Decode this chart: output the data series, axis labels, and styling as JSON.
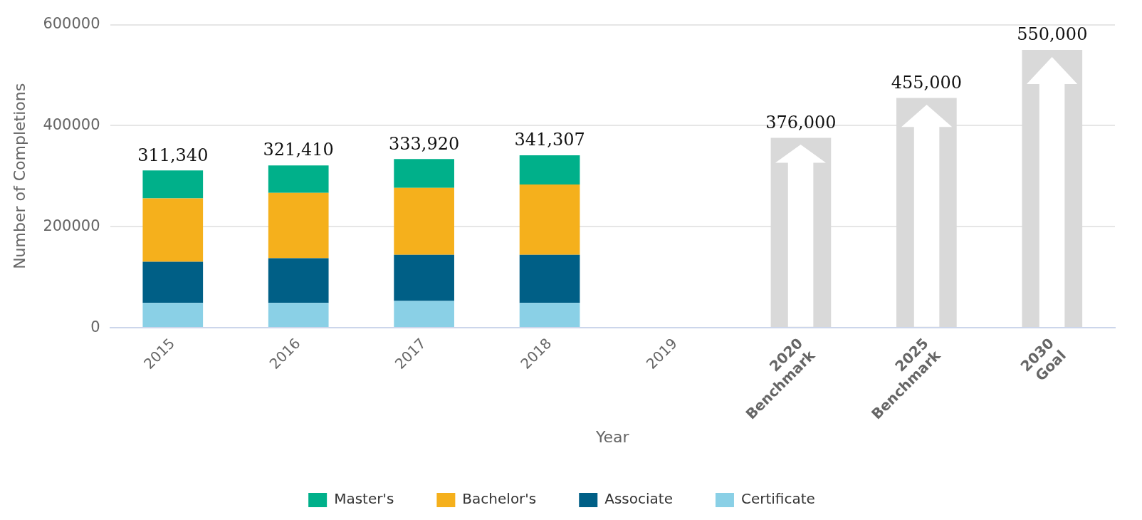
{
  "chart_data": {
    "type": "bar",
    "stacked": true,
    "xlabel": "Year",
    "ylabel": "Number of Completions",
    "categories": [
      "2015",
      "2016",
      "2017",
      "2018",
      "2019",
      "2020\nBenchmark",
      "2025\nBenchmark",
      "2030\nGoal"
    ],
    "series": [
      {
        "name": "Certificate",
        "color": "#8ad0e6",
        "values": [
          49000,
          49000,
          53000,
          49000,
          null,
          null,
          null,
          null
        ]
      },
      {
        "name": "Associate",
        "color": "#005f86",
        "values": [
          81500,
          88500,
          91500,
          95500,
          null,
          null,
          null,
          null
        ]
      },
      {
        "name": "Bachelor's",
        "color": "#f5b01c",
        "values": [
          125500,
          129500,
          132500,
          139000,
          null,
          null,
          null,
          null
        ]
      },
      {
        "name": "Master's",
        "color": "#00b08a",
        "values": [
          55340,
          54410,
          56920,
          57807,
          null,
          null,
          null,
          null
        ]
      },
      {
        "color": "#d9d9d9",
        "values": [
          null,
          null,
          null,
          null,
          null,
          376000,
          455000,
          550000
        ]
      }
    ],
    "totals": [
      "311,340",
      "321,410",
      "333,920",
      "341,307",
      null,
      "376,000",
      "455,000",
      "550,000"
    ],
    "ylim": [
      0,
      600000
    ],
    "yticks": [
      0,
      200000,
      400000,
      600000
    ],
    "grid": "y",
    "legend": "bottom"
  }
}
